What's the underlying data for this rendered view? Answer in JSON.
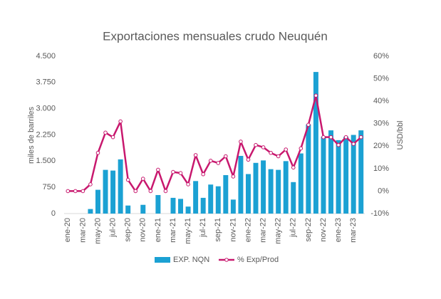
{
  "chart_data": {
    "type": "bar-line",
    "title": "Exportaciones mensuales crudo Neuquén",
    "y_label": "miles de barriles",
    "y2_label": "USD/bbl",
    "categories": [
      "ene-20",
      null,
      "mar-20",
      null,
      "may-20",
      null,
      "jul-20",
      null,
      "sep-20",
      null,
      "nov-20",
      null,
      "ene-21",
      null,
      "mar-21",
      null,
      "may-21",
      null,
      "jul-21",
      null,
      "sep-21",
      null,
      "nov-21",
      null,
      "ene-22",
      null,
      "mar-22",
      null,
      "may-22",
      null,
      "jul-22",
      null,
      "sep-22",
      null,
      "nov-22",
      null,
      "ene-23",
      null,
      "mar-23",
      null
    ],
    "series": [
      {
        "name": "EXP. NQN",
        "type": "bar",
        "axis": "y",
        "color": "#1ba1d3",
        "values": [
          0,
          0,
          0,
          130,
          680,
          1250,
          1230,
          1550,
          230,
          0,
          250,
          0,
          530,
          0,
          450,
          420,
          200,
          930,
          450,
          830,
          780,
          1100,
          400,
          1650,
          1130,
          1450,
          1520,
          1270,
          1250,
          1500,
          900,
          1720,
          2550,
          4050,
          2200,
          2380,
          2100,
          2200,
          2250,
          2380
        ]
      },
      {
        "name": "% Exp/Prod",
        "type": "line",
        "axis": "y2",
        "color": "#c8186e",
        "values": [
          0,
          0,
          0,
          3,
          17,
          26,
          24,
          31,
          5,
          0,
          5.5,
          0,
          9.5,
          0,
          8.5,
          8,
          3,
          16,
          7.5,
          13.5,
          12.5,
          15.5,
          6.5,
          22,
          14,
          20.5,
          19.5,
          17,
          15.5,
          18.5,
          10.5,
          19,
          29.5,
          42.5,
          24,
          24,
          20.5,
          24,
          21,
          24
        ]
      }
    ],
    "ylim": [
      0,
      4500
    ],
    "yticks": [
      0,
      750,
      {
        "value": 1500,
        "label": "1.500"
      },
      {
        "value": 2250,
        "label": "2.250"
      },
      {
        "value": 3000,
        "label": "3.000"
      },
      {
        "value": 3750,
        "label": "3.750"
      },
      {
        "value": 4500,
        "label": "4.500"
      }
    ],
    "y2lim": [
      -10,
      60
    ],
    "y2ticks": [
      {
        "value": -10,
        "label": "-10%"
      },
      {
        "value": 0,
        "label": "0%"
      },
      {
        "value": 10,
        "label": "10%"
      },
      {
        "value": 20,
        "label": "20%"
      },
      {
        "value": 30,
        "label": "30%"
      },
      {
        "value": 40,
        "label": "40%"
      },
      {
        "value": 50,
        "label": "50%"
      },
      {
        "value": 60,
        "label": "60%"
      }
    ],
    "grid": false,
    "legend": "bottom"
  }
}
